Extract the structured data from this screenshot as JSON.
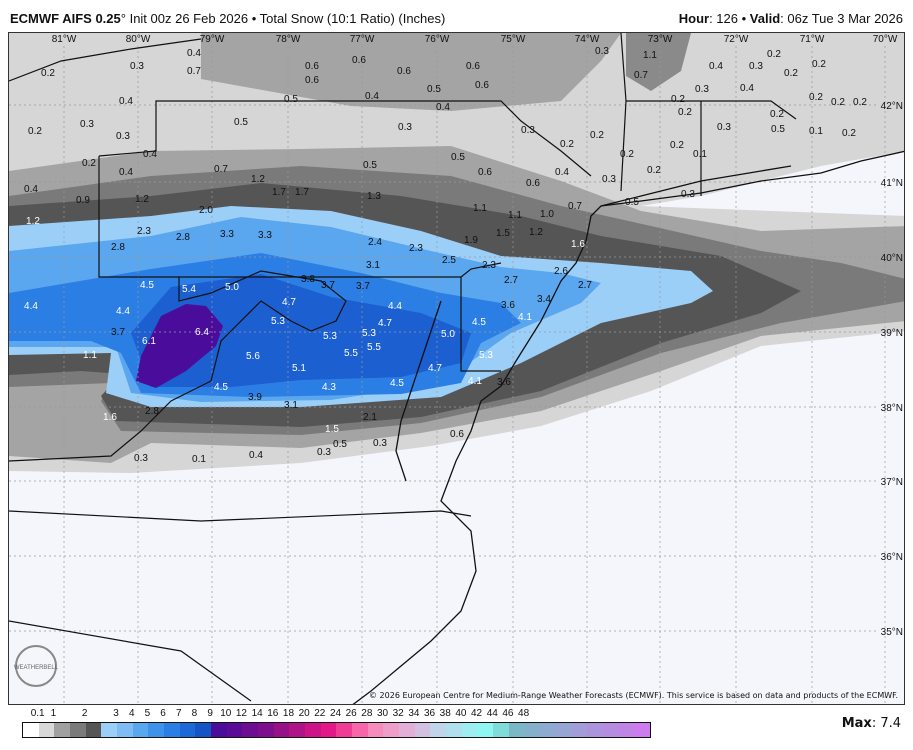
{
  "header": {
    "model": "ECMWF AIFS 0.25",
    "degree": "°",
    "init": " Init 00z 26 Feb 2026 • Total Snow (10:1 Ratio) (Inches)",
    "hour_label": "Hour",
    "hour": ": 126 • ",
    "valid_label": "Valid",
    "valid": ": 06z Tue 3 Mar 2026"
  },
  "lon_labels": [
    "81°W",
    "80°W",
    "79°W",
    "78°W",
    "77°W",
    "76°W",
    "75°W",
    "74°W",
    "73°W",
    "72°W",
    "71°W",
    "70°W"
  ],
  "lat_labels": [
    "42°N",
    "41°N",
    "40°N",
    "39°N",
    "38°N",
    "37°N",
    "36°N",
    "35°N"
  ],
  "snow_labels": [
    "0.2",
    "0.3",
    "0.4",
    "0.7",
    "0.6",
    "0.6",
    "0.6",
    "0.6",
    "0.6",
    "0.6",
    "0.3",
    "1.1",
    "0.7",
    "0.4",
    "0.3",
    "0.4",
    "0.2",
    "0.2",
    "0.2",
    "0.2",
    "0.2",
    "0.4",
    "0.5",
    "0.4",
    "0.5",
    "0.4",
    "0.2",
    "0.3",
    "0.2",
    "0.2",
    "0.3",
    "0.2",
    "0.2",
    "0.3",
    "0.3",
    "0.5",
    "0.3",
    "0.3",
    "0.2",
    "0.5",
    "0.1",
    "0.2",
    "0.2",
    "0.4",
    "0.4",
    "0.7",
    "0.5",
    "0.5",
    "0.6",
    "0.2",
    "0.2",
    "0.2",
    "0.1",
    "0.4",
    "0.6",
    "0.3",
    "0.2",
    "0.4",
    "0.9",
    "1.2",
    "1.2",
    "1.7",
    "1.7",
    "1.3",
    "2.0",
    "1.1",
    "1.1",
    "1.0",
    "1.2",
    "0.5",
    "0.3",
    "0.7",
    "1.2",
    "2.8",
    "2.3",
    "2.8",
    "3.3",
    "3.3",
    "2.4",
    "2.3",
    "1.9",
    "1.5",
    "1.6",
    "3.1",
    "2.5",
    "2.3",
    "2.7",
    "2.6",
    "2.7",
    "4.5",
    "5.4",
    "5.0",
    "3.8",
    "3.7",
    "3.7",
    "4.4",
    "4.4",
    "4.7",
    "3.6",
    "3.4",
    "4.1",
    "5.3",
    "6.4",
    "6.1",
    "3.7",
    "4.4",
    "4.7",
    "5.3",
    "5.3",
    "5.5",
    "5.5",
    "5.0",
    "4.5",
    "5.3",
    "5.6",
    "5.1",
    "4.7",
    "4.5",
    "4.1",
    "3.6",
    "1.1",
    "4.5",
    "4.3",
    "3.9",
    "3.1",
    "2.8",
    "1.6",
    "2.1",
    "1.5",
    "0.5",
    "0.3",
    "0.6",
    "0.3",
    "0.4",
    "0.1",
    "0.3"
  ],
  "colorbar": {
    "ticks": [
      "0.1",
      "1",
      "2",
      "3",
      "4",
      "5",
      "6",
      "7",
      "8",
      "9",
      "10",
      "12",
      "14",
      "16",
      "18",
      "20",
      "22",
      "24",
      "26",
      "28",
      "30",
      "32",
      "34",
      "36",
      "38",
      "40",
      "42",
      "44",
      "46",
      "48"
    ],
    "colors": [
      "#ffffff",
      "#d8d8d8",
      "#a0a0a0",
      "#7a7a7a",
      "#555555",
      "#9ccff8",
      "#7fbcf4",
      "#5aa6ef",
      "#3f92ea",
      "#2b7ee3",
      "#1c68d6",
      "#1454c4",
      "#4a0c9a",
      "#5a0c98",
      "#6c0d92",
      "#7e0f8c",
      "#961088",
      "#b01288",
      "#cc1488",
      "#e41888",
      "#f03c94",
      "#f766a8",
      "#f58cbc",
      "#ee9ec8",
      "#e2b0d6",
      "#d2c0e0",
      "#c0d4ea",
      "#b0e0ee",
      "#9ceef2",
      "#90f6f2",
      "#80dcd8",
      "#7ab8c8",
      "#84b0cc",
      "#8eaad0",
      "#98a4d4",
      "#a29cd8",
      "#ac94dc",
      "#b68ce0",
      "#c084e6",
      "#cc7cee"
    ],
    "max_label": "Max",
    "max_value": ": 7.4"
  },
  "copyright": "© 2026 European Centre for Medium-Range Weather Forecasts (ECMWF). This service is based on data and products of the ECMWF.",
  "logo_text": "WEATHERBELL",
  "colors": {
    "ocean": "#eef3fb",
    "land": "#f5f7fb"
  }
}
